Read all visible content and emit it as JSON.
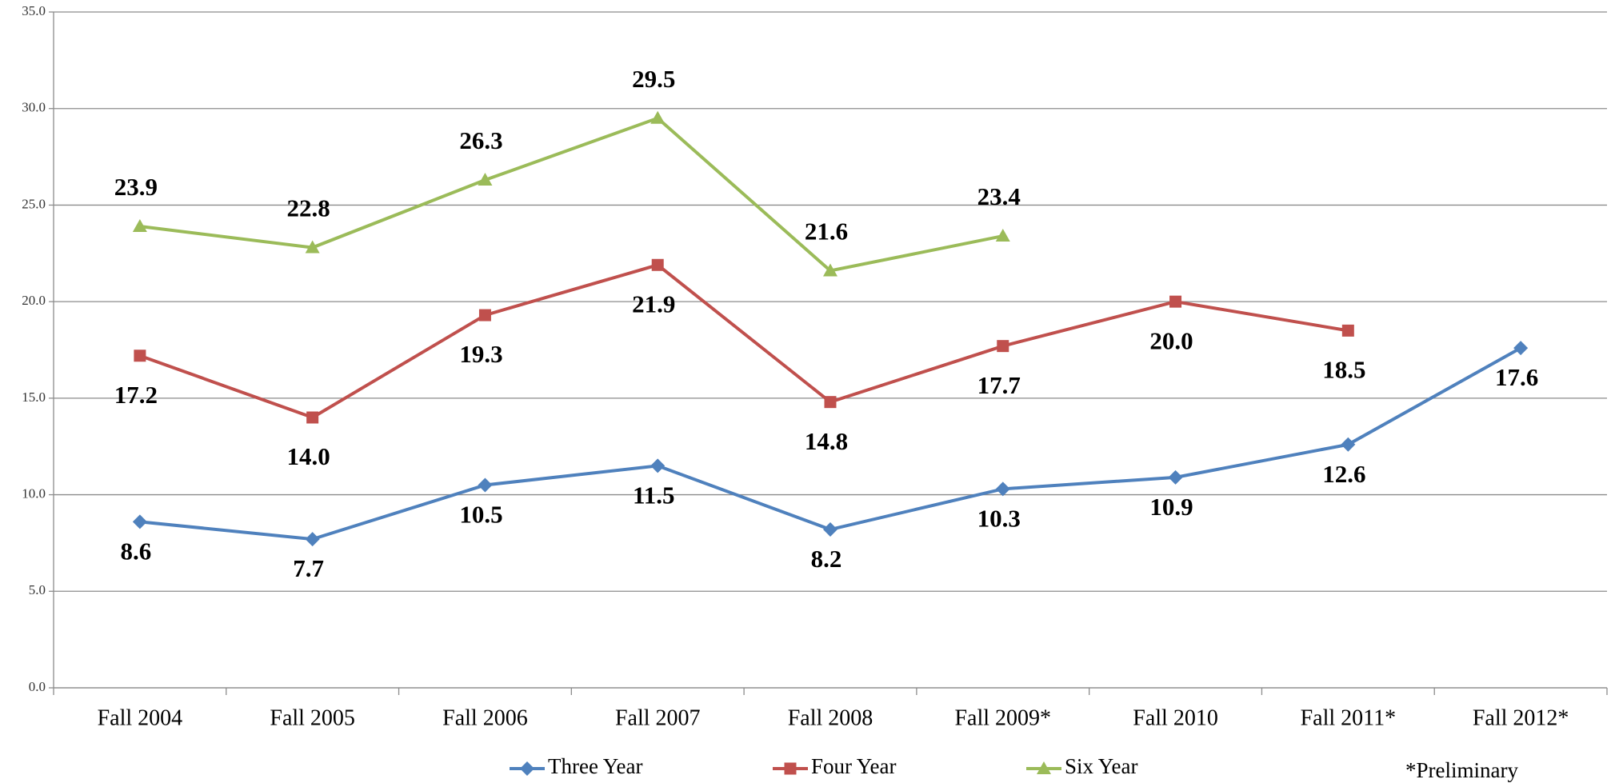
{
  "chart_data": {
    "type": "line",
    "categories": [
      "Fall 2004",
      "Fall 2005",
      "Fall 2006",
      "Fall 2007",
      "Fall 2008",
      "Fall 2009*",
      "Fall 2010",
      "Fall 2011*",
      "Fall 2012*"
    ],
    "series": [
      {
        "name": "Three Year",
        "color": "#4f81bd",
        "label_color": "#0070c0",
        "marker": "diamond",
        "values": [
          8.6,
          7.7,
          10.5,
          11.5,
          8.2,
          10.3,
          10.9,
          12.6,
          17.6
        ],
        "value_labels": [
          "8.6",
          "7.7",
          "10.5",
          "11.5",
          "8.2",
          "10.3",
          "10.9",
          "12.6",
          "17.6"
        ]
      },
      {
        "name": "Four Year",
        "color": "#c0504d",
        "label_color": "#c00000",
        "marker": "square",
        "values": [
          17.2,
          14.0,
          19.3,
          21.9,
          14.8,
          17.7,
          20.0,
          18.5,
          null
        ],
        "value_labels": [
          "17.2",
          "14.0",
          "19.3",
          "21.9",
          "14.8",
          "17.7",
          "20.0",
          "18.5",
          null
        ]
      },
      {
        "name": "Six Year",
        "color": "#9bbb59",
        "label_color": "#77933c",
        "marker": "triangle",
        "values": [
          23.9,
          22.8,
          26.3,
          29.5,
          21.6,
          23.4,
          null,
          null,
          null
        ],
        "value_labels": [
          "23.9",
          "22.8",
          "26.3",
          "29.5",
          "21.6",
          "23.4",
          null,
          null,
          null
        ]
      }
    ],
    "ylim": [
      0,
      35
    ],
    "yticks": [
      {
        "value": 0,
        "label": "0.0"
      },
      {
        "value": 5,
        "label": "5.0"
      },
      {
        "value": 10,
        "label": "10.0"
      },
      {
        "value": 15,
        "label": "15.0"
      },
      {
        "value": 20,
        "label": "20.0"
      },
      {
        "value": 25,
        "label": "25.0"
      },
      {
        "value": 30,
        "label": "30.0"
      },
      {
        "value": 35,
        "label": "35.0"
      }
    ],
    "grid": true,
    "legend": "bottom",
    "annotation": "*Preliminary"
  }
}
